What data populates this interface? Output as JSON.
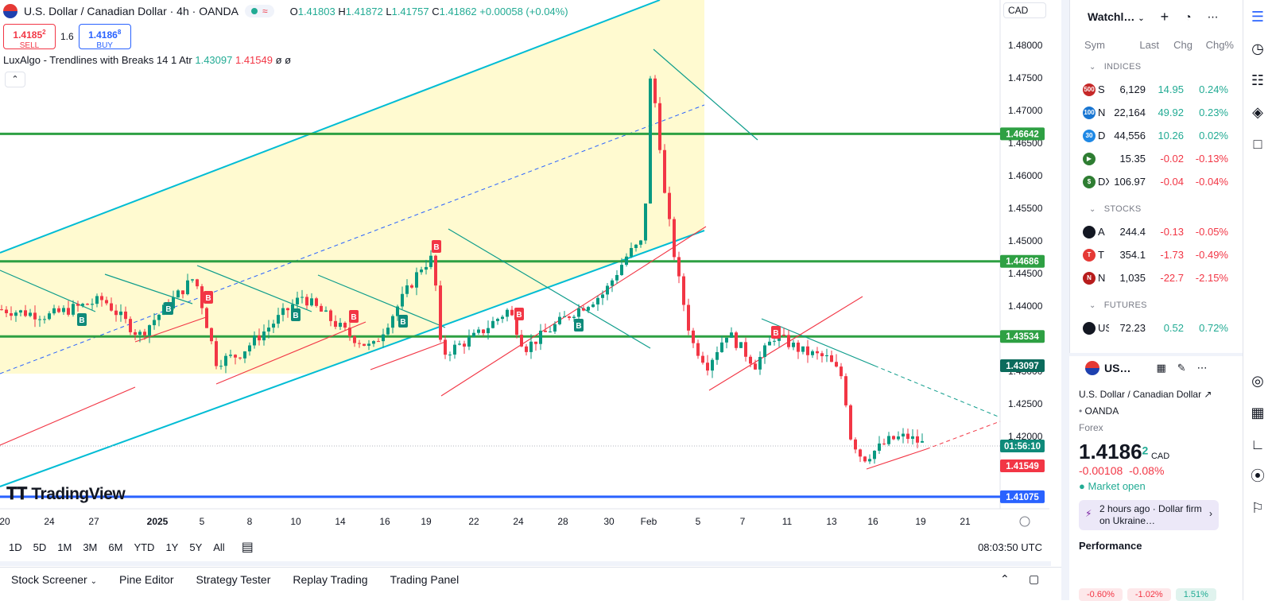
{
  "header": {
    "symbol_title": "U.S. Dollar / Canadian Dollar · 4h · OANDA",
    "wave_icon": "≈",
    "ohlc_o_label": "O",
    "ohlc_o": "1.41803",
    "ohlc_h_label": "H",
    "ohlc_h": "1.41872",
    "ohlc_l_label": "L",
    "ohlc_l": "1.41757",
    "ohlc_c_label": "C",
    "ohlc_c": "1.41862",
    "ohlc_change": "+0.00058 (+0.04%)",
    "currency_button": "CAD"
  },
  "trade": {
    "sell_price": "1.4185",
    "sell_sup": "2",
    "sell_label": "SELL",
    "spread": "1.6",
    "buy_price": "1.4186",
    "buy_sup": "8",
    "buy_label": "BUY"
  },
  "indicator": {
    "name": "LuxAlgo - Trendlines with Breaks 14 1 Atr",
    "v1": "1.43097",
    "v2": "1.41549",
    "v3": "ø ø"
  },
  "logo": "TradingView",
  "price_axis": [
    "1.48000",
    "1.47500",
    "1.47000",
    "1.46500",
    "1.46000",
    "1.45500",
    "1.45000",
    "1.44500",
    "1.44000",
    "1.43500",
    "1.43000",
    "1.42500",
    "1.42000",
    "1.41500"
  ],
  "price_tags": {
    "h1": "1.46642",
    "h2": "1.44686",
    "h3": "1.43534",
    "ind_up": "1.43097",
    "countdown": "01:56:10",
    "ind_down": "1.41549",
    "blue_line": "1.41075"
  },
  "time_axis": [
    "20",
    "24",
    "27",
    "2025",
    "5",
    "8",
    "10",
    "14",
    "16",
    "19",
    "22",
    "24",
    "28",
    "30",
    "Feb",
    "5",
    "7",
    "11",
    "13",
    "16",
    "19",
    "21"
  ],
  "chart_marks": {
    "buy_label": "B",
    "sell_label": "B"
  },
  "timeframes": [
    "1D",
    "5D",
    "1M",
    "3M",
    "6M",
    "YTD",
    "1Y",
    "5Y",
    "All"
  ],
  "clock": "08:03:50 UTC",
  "bottom_tabs": [
    "Stock Screener",
    "Pine Editor",
    "Strategy Tester",
    "Replay Trading",
    "Trading Panel"
  ],
  "watchlist": {
    "title": "Watchl…",
    "cols": [
      "Sym",
      "Last",
      "Chg",
      "Chg%"
    ],
    "sections": [
      {
        "name": "INDICES",
        "rows": [
          {
            "icon": "500",
            "icon_color": "#c62828",
            "sym": "S",
            "last": "6,129",
            "chg": "14.95",
            "pct": "0.24%",
            "dir": "pos"
          },
          {
            "icon": "100",
            "icon_color": "#1976d2",
            "sym": "N",
            "last": "22,164",
            "chg": "49.92",
            "pct": "0.23%",
            "dir": "pos"
          },
          {
            "icon": "30",
            "icon_color": "#1e88e5",
            "sym": "D",
            "last": "44,556",
            "chg": "10.26",
            "pct": "0.02%",
            "dir": "pos"
          },
          {
            "icon": "▶",
            "icon_color": "#2e7d32",
            "sym": "",
            "last": "15.35",
            "chg": "-0.02",
            "pct": "-0.13%",
            "dir": "neg"
          },
          {
            "icon": "$",
            "icon_color": "#2e7d32",
            "sym": "DX",
            "last": "106.97",
            "chg": "-0.04",
            "pct": "-0.04%",
            "dir": "neg"
          }
        ]
      },
      {
        "name": "STOCKS",
        "rows": [
          {
            "icon": "",
            "icon_color": "#131722",
            "sym": "A",
            "last": "244.4",
            "chg": "-0.13",
            "pct": "-0.05%",
            "dir": "neg"
          },
          {
            "icon": "T",
            "icon_color": "#e53935",
            "sym": "T",
            "last": "354.1",
            "chg": "-1.73",
            "pct": "-0.49%",
            "dir": "neg"
          },
          {
            "icon": "N",
            "icon_color": "#b71c1c",
            "sym": "N",
            "last": "1,035",
            "chg": "-22.7",
            "pct": "-2.15%",
            "dir": "neg"
          }
        ]
      },
      {
        "name": "FUTURES",
        "rows": [
          {
            "icon": "",
            "icon_color": "#131722",
            "sym": "US",
            "last": "72.23",
            "chg": "0.52",
            "pct": "0.72%",
            "dir": "pos"
          }
        ]
      }
    ]
  },
  "details": {
    "symbol": "US…",
    "full_name": "U.S. Dollar / Canadian Dollar",
    "exchange": "OANDA",
    "type": "Forex",
    "price": "1.4186",
    "price_sup": "2",
    "currency": "CAD",
    "change": "-0.00108",
    "change_pct": "-0.08%",
    "market_status": "Market open",
    "news": "2 hours ago · Dollar firm on Ukraine…",
    "performance": "Performance",
    "perf_values": [
      "-0.60%",
      "-1.02%",
      "1.51%"
    ]
  },
  "colors": {
    "green": "#22ab94",
    "red": "#f23645",
    "blue": "#2962ff",
    "cyan": "#00bcd4",
    "hline": "#2ea043",
    "band": "#fff9c4"
  }
}
